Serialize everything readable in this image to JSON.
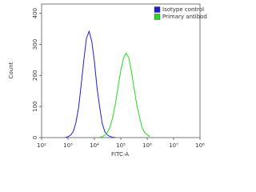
{
  "chart_data": {
    "type": "line",
    "x_label": "FITC-A",
    "y_label": "Count",
    "x_scale": "log",
    "legend": "top-right",
    "xlim": [
      100,
      100000000
    ],
    "xticks": [
      {
        "value": 100,
        "label": "10²"
      },
      {
        "value": 1000,
        "label": "10³"
      },
      {
        "value": 10000,
        "label": "10⁴"
      },
      {
        "value": 100000,
        "label": "10⁵"
      },
      {
        "value": 1000000,
        "label": "10⁶"
      },
      {
        "value": 10000000,
        "label": "10⁷"
      },
      {
        "value": 100000000,
        "label": "10⁸"
      }
    ],
    "ylim": [
      0,
      430
    ],
    "yticks": [
      0,
      100,
      200,
      300,
      400
    ],
    "series": [
      {
        "name": "Isotype control",
        "color": "#1f1fd0",
        "x": [
          794,
          1000,
          1259,
          1585,
          1995,
          2512,
          3162,
          3981,
          5012,
          6310,
          7943,
          10000,
          12589,
          15849,
          19953,
          25119,
          31623,
          39811,
          50119,
          63096
        ],
        "values": [
          0,
          3,
          8,
          20,
          48,
          96,
          170,
          250,
          320,
          342,
          310,
          245,
          160,
          98,
          44,
          18,
          8,
          3,
          1,
          0
        ]
      },
      {
        "name": "Primary antibod",
        "color": "#22dd22",
        "x": [
          15849,
          19953,
          25119,
          31623,
          39811,
          50119,
          63096,
          79433,
          100000,
          125893,
          158489,
          199526,
          251189,
          316228,
          398107,
          501187,
          630957,
          794328,
          1000000,
          1258925
        ],
        "values": [
          1,
          3,
          8,
          18,
          36,
          67,
          111,
          164,
          216,
          255,
          272,
          258,
          214,
          160,
          108,
          70,
          34,
          17,
          9,
          3
        ]
      }
    ]
  }
}
